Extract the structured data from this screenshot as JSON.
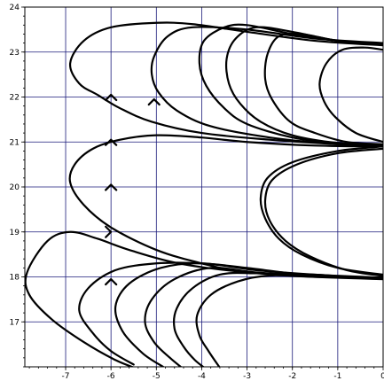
{
  "chart_data": {
    "type": "line",
    "title": "",
    "xlabel": "",
    "ylabel": "",
    "xlim": [
      -7.9,
      0
    ],
    "ylim": [
      16.0,
      24.0
    ],
    "grid": true,
    "x_ticks": [
      -7,
      -6,
      -5,
      -4,
      -3,
      -2,
      -1,
      0
    ],
    "x_tick_labels": [
      "-7",
      "-6",
      "-5",
      "-4",
      "-3",
      "-2",
      "-1",
      "0"
    ],
    "y_ticks": [
      17,
      18,
      19,
      20,
      21,
      22,
      23,
      24
    ],
    "y_tick_labels": [
      "17",
      "18",
      "19",
      "20",
      "21",
      "22",
      "23",
      "24"
    ],
    "series": [
      {
        "values": [
          [
            0,
            23.15
          ],
          [
            -1.5,
            23.25
          ],
          [
            -3,
            23.45
          ],
          [
            -4.2,
            23.62
          ],
          [
            -5,
            23.65
          ],
          [
            -6,
            23.55
          ],
          [
            -6.6,
            23.25
          ],
          [
            -6.9,
            22.75
          ],
          [
            -6.7,
            22.3
          ],
          [
            -6.3,
            22.05
          ],
          [
            -5.8,
            21.75
          ],
          [
            -5.1,
            21.45
          ],
          [
            -4,
            21.2
          ],
          [
            -2.5,
            21.05
          ],
          [
            -1,
            20.95
          ],
          [
            0,
            20.9
          ]
        ]
      },
      {
        "values": [
          [
            0,
            23.2
          ],
          [
            -1.5,
            23.3
          ],
          [
            -3,
            23.5
          ],
          [
            -4.2,
            23.55
          ],
          [
            -4.75,
            23.35
          ],
          [
            -5.05,
            22.9
          ],
          [
            -5.1,
            22.5
          ],
          [
            -4.95,
            22.1
          ],
          [
            -4.55,
            21.7
          ],
          [
            -3.8,
            21.35
          ],
          [
            -2.5,
            21.1
          ],
          [
            -1,
            20.95
          ],
          [
            0,
            20.92
          ]
        ]
      },
      {
        "values": [
          [
            0,
            23.18
          ],
          [
            -1,
            23.25
          ],
          [
            -2,
            23.4
          ],
          [
            -3,
            23.6
          ],
          [
            -3.5,
            23.55
          ],
          [
            -3.95,
            23.25
          ],
          [
            -4.05,
            22.75
          ],
          [
            -3.9,
            22.25
          ],
          [
            -3.5,
            21.75
          ],
          [
            -3,
            21.4
          ],
          [
            -2,
            21.1
          ],
          [
            -1,
            20.97
          ],
          [
            0,
            20.93
          ]
        ]
      },
      {
        "values": [
          [
            0,
            23.17
          ],
          [
            -1,
            23.25
          ],
          [
            -2,
            23.45
          ],
          [
            -2.8,
            23.55
          ],
          [
            -3.25,
            23.3
          ],
          [
            -3.45,
            22.85
          ],
          [
            -3.4,
            22.3
          ],
          [
            -3.15,
            21.85
          ],
          [
            -2.7,
            21.45
          ],
          [
            -2,
            21.15
          ],
          [
            -1,
            20.98
          ],
          [
            0,
            20.94
          ]
        ]
      },
      {
        "values": [
          [
            0,
            23.16
          ],
          [
            -1,
            23.25
          ],
          [
            -1.8,
            23.4
          ],
          [
            -2.3,
            23.35
          ],
          [
            -2.55,
            22.95
          ],
          [
            -2.6,
            22.4
          ],
          [
            -2.45,
            21.95
          ],
          [
            -2.05,
            21.45
          ],
          [
            -1.5,
            21.2
          ],
          [
            -0.8,
            21.0
          ],
          [
            0,
            20.95
          ]
        ]
      },
      {
        "values": [
          [
            0,
            23.05
          ],
          [
            -0.4,
            23.1
          ],
          [
            -0.9,
            23.05
          ],
          [
            -1.25,
            22.75
          ],
          [
            -1.4,
            22.3
          ],
          [
            -1.3,
            21.9
          ],
          [
            -1.05,
            21.55
          ],
          [
            -0.6,
            21.2
          ],
          [
            0,
            21.0
          ]
        ]
      },
      {
        "values": [
          [
            0,
            20.9
          ],
          [
            -1,
            20.8
          ],
          [
            -2,
            20.55
          ],
          [
            -2.55,
            20.2
          ],
          [
            -2.7,
            19.75
          ],
          [
            -2.6,
            19.3
          ],
          [
            -2.3,
            18.85
          ],
          [
            -1.8,
            18.5
          ],
          [
            -1,
            18.2
          ],
          [
            0,
            18.05
          ]
        ]
      },
      {
        "values": [
          [
            0,
            20.85
          ],
          [
            -1,
            20.75
          ],
          [
            -1.9,
            20.5
          ],
          [
            -2.45,
            20.15
          ],
          [
            -2.6,
            19.7
          ],
          [
            -2.5,
            19.25
          ],
          [
            -2.15,
            18.8
          ],
          [
            -1.6,
            18.45
          ],
          [
            -0.8,
            18.15
          ],
          [
            0,
            18.02
          ]
        ]
      },
      {
        "values": [
          [
            0,
            17.95
          ],
          [
            -1.5,
            18.0
          ],
          [
            -3,
            18.1
          ],
          [
            -4.5,
            18.3
          ],
          [
            -5.6,
            18.6
          ],
          [
            -6.3,
            18.85
          ],
          [
            -6.9,
            19.0
          ],
          [
            -7.4,
            18.8
          ],
          [
            -7.85,
            18.1
          ],
          [
            -7.8,
            17.6
          ],
          [
            -7.3,
            17.05
          ],
          [
            -6.6,
            16.55
          ],
          [
            -5.9,
            16.15
          ],
          [
            -5.4,
            15.95
          ]
        ]
      },
      {
        "values": [
          [
            0,
            17.95
          ],
          [
            -1.5,
            18.05
          ],
          [
            -3,
            18.1
          ],
          [
            -4,
            18.3
          ],
          [
            -5,
            18.6
          ],
          [
            -6,
            19.1
          ],
          [
            -6.6,
            19.6
          ],
          [
            -6.9,
            20.1
          ],
          [
            -6.8,
            20.5
          ],
          [
            -6.4,
            20.85
          ],
          [
            -5.8,
            21.05
          ],
          [
            -5,
            21.15
          ],
          [
            -4,
            21.1
          ],
          [
            -3,
            21.0
          ],
          [
            -1.5,
            20.92
          ],
          [
            0,
            20.9
          ]
        ]
      },
      {
        "values": [
          [
            0,
            17.98
          ],
          [
            -1.5,
            18.02
          ],
          [
            -3,
            18.2
          ],
          [
            -4,
            18.3
          ],
          [
            -5,
            18.3
          ],
          [
            -5.9,
            18.15
          ],
          [
            -6.5,
            17.75
          ],
          [
            -6.7,
            17.25
          ],
          [
            -6.4,
            16.75
          ],
          [
            -6,
            16.35
          ],
          [
            -5.5,
            16.05
          ]
        ]
      },
      {
        "values": [
          [
            0,
            17.98
          ],
          [
            -1.5,
            18.05
          ],
          [
            -2.8,
            18.15
          ],
          [
            -4,
            18.3
          ],
          [
            -4.9,
            18.2
          ],
          [
            -5.6,
            17.85
          ],
          [
            -5.9,
            17.35
          ],
          [
            -5.75,
            16.8
          ],
          [
            -5.3,
            16.3
          ],
          [
            -4.85,
            16.0
          ]
        ]
      },
      {
        "values": [
          [
            0,
            17.98
          ],
          [
            -1.5,
            18.02
          ],
          [
            -2.8,
            18.1
          ],
          [
            -3.8,
            18.2
          ],
          [
            -4.6,
            17.95
          ],
          [
            -5.1,
            17.5
          ],
          [
            -5.25,
            17.0
          ],
          [
            -5.05,
            16.55
          ],
          [
            -4.7,
            16.2
          ],
          [
            -4.4,
            15.95
          ]
        ]
      },
      {
        "values": [
          [
            0,
            17.98
          ],
          [
            -1.5,
            18.02
          ],
          [
            -2.8,
            18.08
          ],
          [
            -3.6,
            18.05
          ],
          [
            -4.2,
            17.75
          ],
          [
            -4.55,
            17.3
          ],
          [
            -4.6,
            16.85
          ],
          [
            -4.4,
            16.45
          ],
          [
            -4.15,
            16.15
          ],
          [
            -3.9,
            15.95
          ]
        ]
      },
      {
        "values": [
          [
            0,
            17.98
          ],
          [
            -1.5,
            18.0
          ],
          [
            -2.5,
            18.03
          ],
          [
            -3.2,
            17.9
          ],
          [
            -3.8,
            17.6
          ],
          [
            -4.1,
            17.15
          ],
          [
            -4.05,
            16.7
          ],
          [
            -3.85,
            16.35
          ],
          [
            -3.6,
            15.98
          ]
        ]
      }
    ],
    "arrows": [
      {
        "x": -6.0,
        "y": 22.05,
        "dir": "up"
      },
      {
        "x": -5.05,
        "y": 21.95,
        "dir": "up"
      },
      {
        "x": -6.0,
        "y": 21.05,
        "dir": "up"
      },
      {
        "x": -6.0,
        "y": 20.05,
        "dir": "up"
      },
      {
        "x": -6.0,
        "y": 19.0,
        "dir": "right"
      },
      {
        "x": -6.0,
        "y": 17.95,
        "dir": "up"
      }
    ]
  }
}
